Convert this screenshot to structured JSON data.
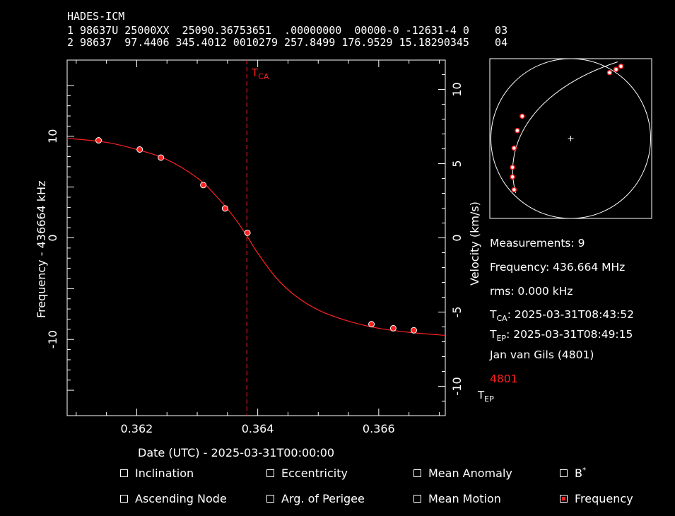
{
  "header": {
    "satellite_name": "HADES-ICM",
    "tle_line1": "1 98637U 25000XX  25090.36753651  .00000000  00000-0 -12631-4 0    03",
    "tle_line2": "2 98637  97.4406 345.4012 0010279 257.8499 176.9529 15.18290345    04"
  },
  "plot": {
    "xlabel": "Date (UTC) - 2025-03-31T00:00:00",
    "ylabel_left": "Frequency - 436664 kHz",
    "ylabel_right": "Velocity (km/s)",
    "tca_marker": "T",
    "tca_sub": "CA",
    "tep_marker": "T",
    "tep_sub": "EP",
    "x_ticks": [
      "0.362",
      "0.364",
      "0.366"
    ],
    "y_left_ticks": [
      "10",
      "0",
      "-10"
    ],
    "y_right_ticks": [
      "10",
      "5",
      "0",
      "-5",
      "-10"
    ],
    "colors": {
      "data": "#ff2020",
      "axes": "#ffffff",
      "background": "#000000"
    }
  },
  "chart_data": {
    "type": "scatter",
    "xlim": [
      0.36085,
      0.3671
    ],
    "ylim": [
      -17.5,
      17.5
    ],
    "right_axis_range": [
      -11.98,
      11.98
    ],
    "tca_x": 0.36382,
    "measurements": {
      "x": [
        0.36137,
        0.36205,
        0.3624,
        0.3631,
        0.36346,
        0.36383,
        0.36588,
        0.36624,
        0.36658
      ],
      "y": [
        9.6,
        8.7,
        7.9,
        5.2,
        2.9,
        0.5,
        -8.5,
        -8.9,
        -9.1
      ]
    },
    "fit_curve": {
      "x": [
        0.36085,
        0.3615,
        0.362,
        0.3625,
        0.363,
        0.3633,
        0.3636,
        0.36382,
        0.364,
        0.3643,
        0.3646,
        0.365,
        0.3655,
        0.366,
        0.3665,
        0.3671
      ],
      "y": [
        9.8,
        9.4,
        8.7,
        7.7,
        5.9,
        4.2,
        2.1,
        0.2,
        -1.5,
        -3.9,
        -5.6,
        -7.1,
        -8.2,
        -8.9,
        -9.3,
        -9.6
      ]
    }
  },
  "sky_map": {
    "track_points": [
      [
        0.74,
        0.03
      ],
      [
        0.78,
        0.01
      ],
      [
        0.81,
        -0.01
      ],
      [
        0.2,
        0.36
      ],
      [
        0.17,
        0.45
      ],
      [
        0.15,
        0.56
      ],
      [
        0.14,
        0.68
      ],
      [
        0.14,
        0.74
      ],
      [
        0.15,
        0.82
      ]
    ]
  },
  "info": {
    "measurements": "Measurements: 9",
    "frequency": "Frequency: 436.664 MHz",
    "rms": "rms: 0.000 kHz",
    "tca_label_main": "T",
    "tca_label_sub": "CA",
    "tca_value": ": 2025-03-31T08:43:52",
    "tep_label_main": "T",
    "tep_label_sub": "EP",
    "tep_value": ": 2025-03-31T08:49:15",
    "observer": "Jan van Gils (4801)",
    "station_id": "4801"
  },
  "checkboxes": [
    {
      "label": "Inclination",
      "checked": false
    },
    {
      "label": "Eccentricity",
      "checked": false
    },
    {
      "label": "Mean Anomaly",
      "checked": false
    },
    {
      "label": "B",
      "sup": "*",
      "checked": false
    },
    {
      "label": "Ascending Node",
      "checked": false
    },
    {
      "label": "Arg. of Perigee",
      "checked": false
    },
    {
      "label": "Mean Motion",
      "checked": false
    },
    {
      "label": "Frequency",
      "checked": true
    }
  ]
}
